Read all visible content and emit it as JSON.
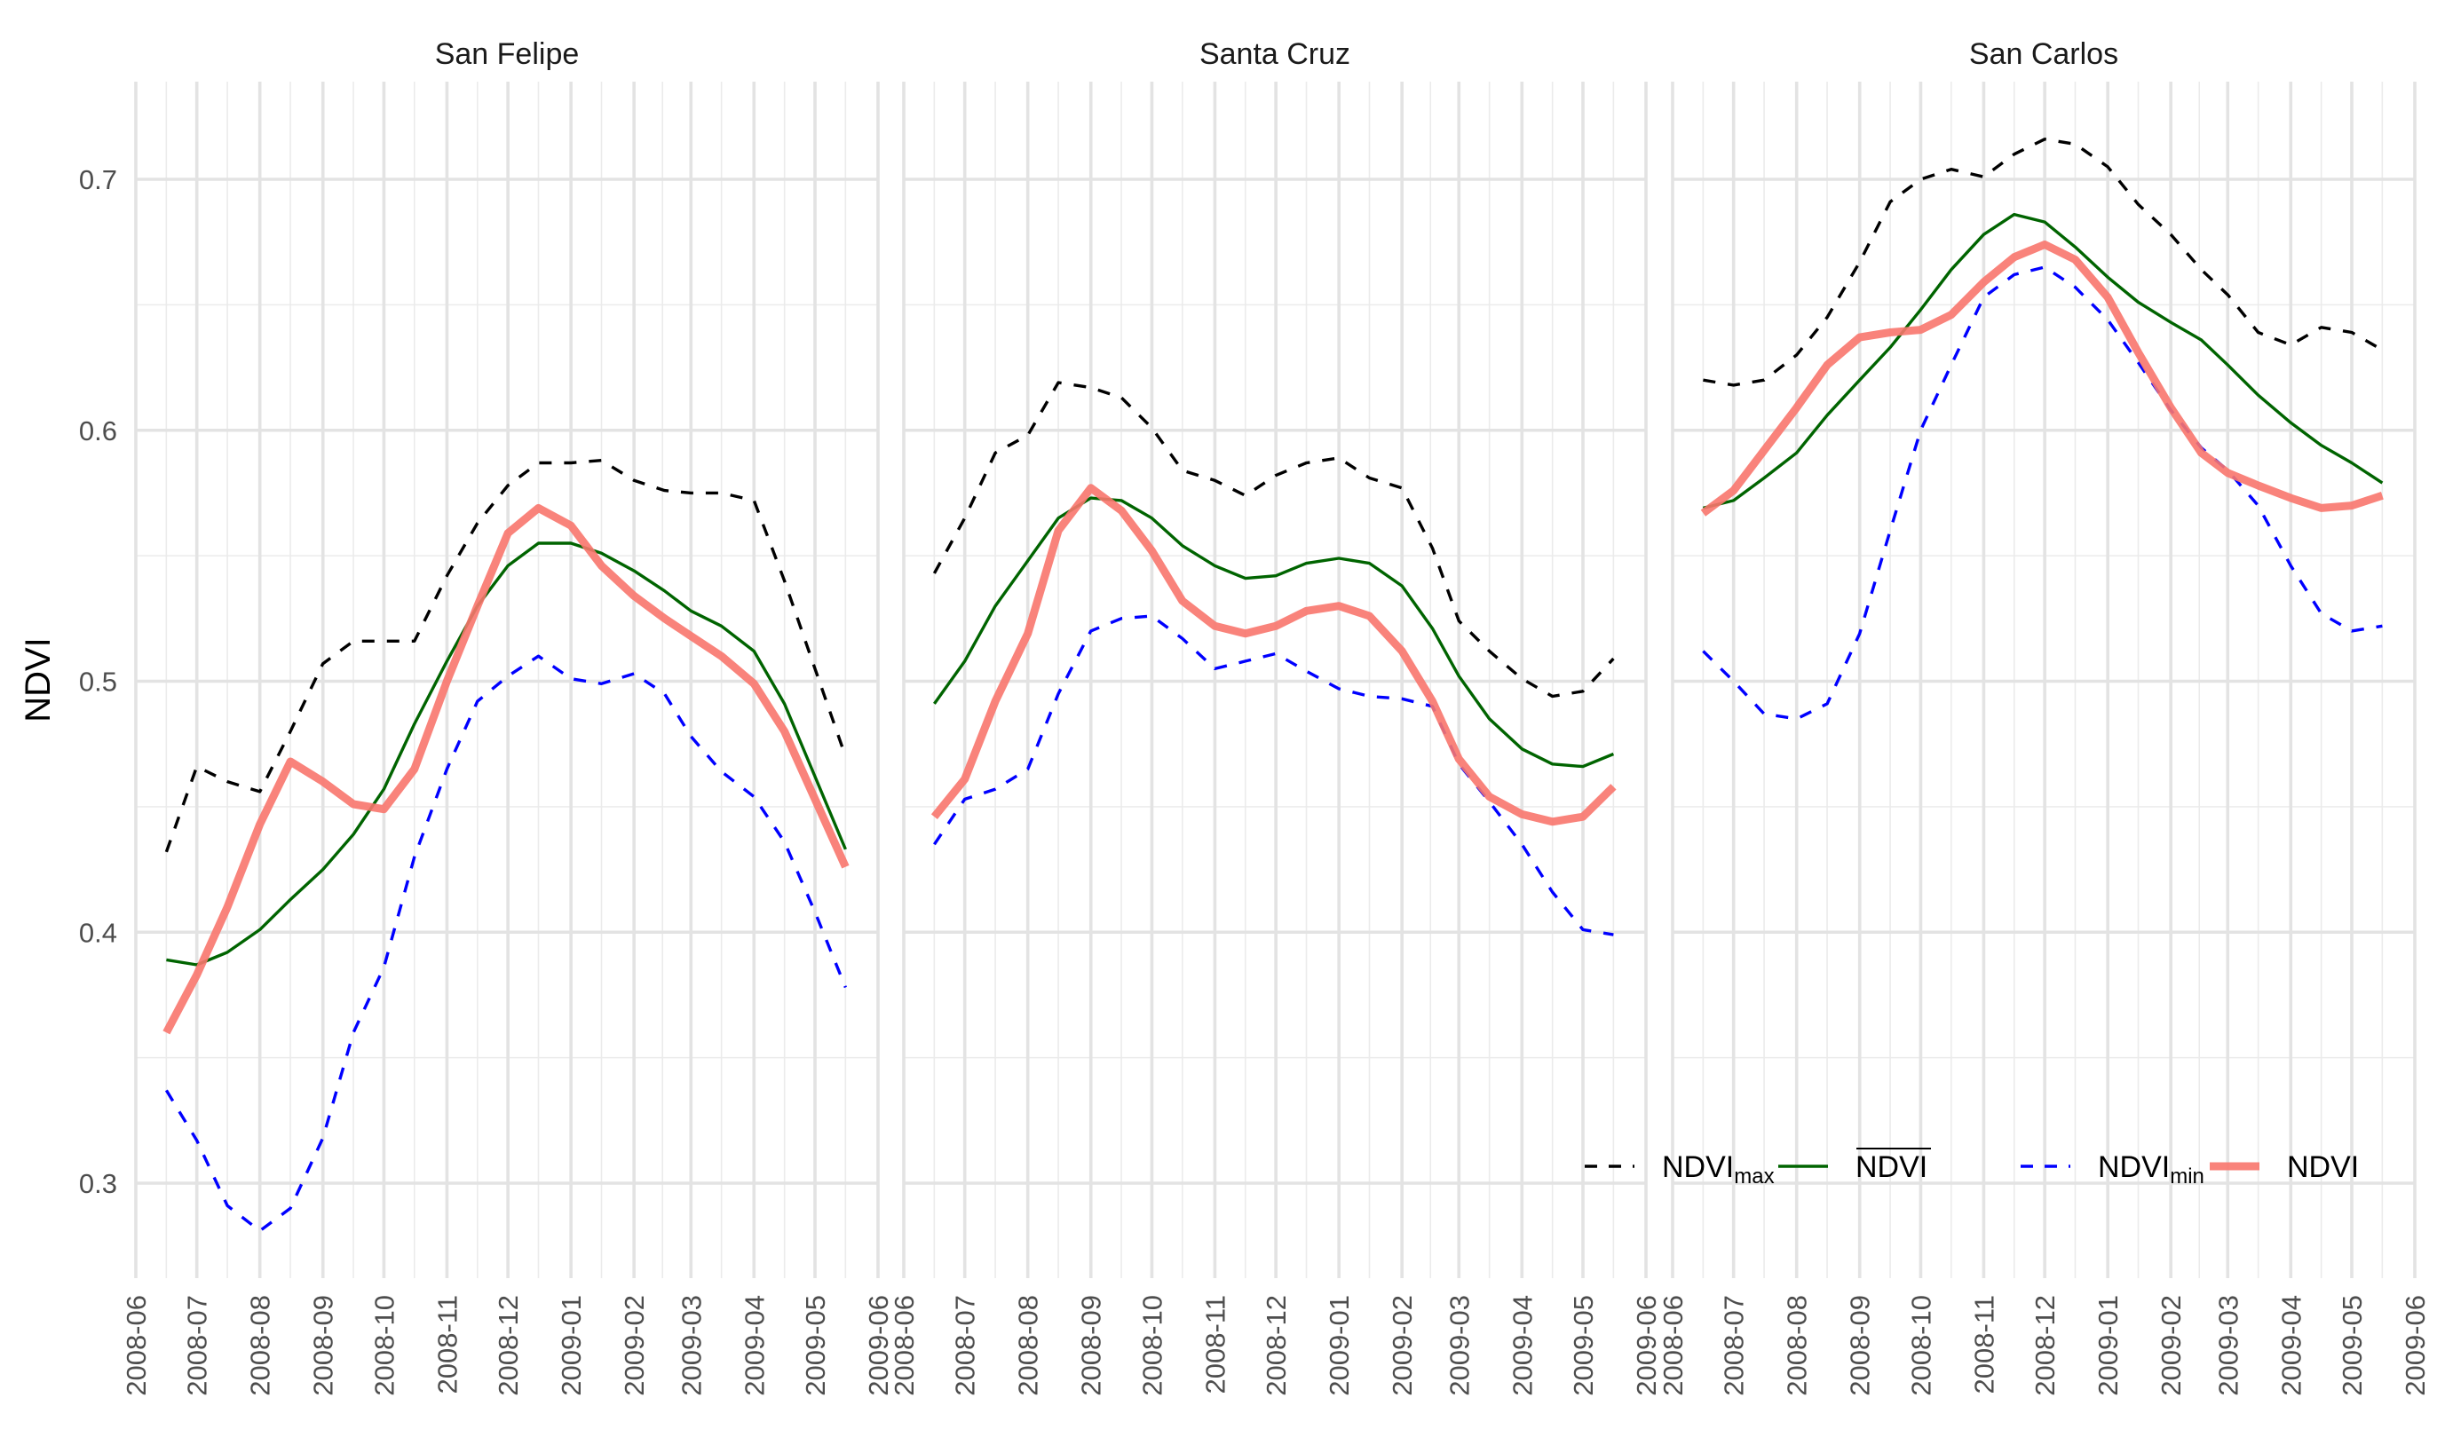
{
  "chart_data": {
    "type": "line",
    "ylabel": "NDVI",
    "ylim": [
      0.265,
      0.74
    ],
    "yticks": [
      0.3,
      0.4,
      0.5,
      0.6,
      0.7
    ],
    "ytick_labels": [
      "0.3",
      "0.4",
      "0.5",
      "0.6",
      "0.7"
    ],
    "xlim": [
      "2008-06-01",
      "2009-06-01"
    ],
    "xticks": [
      "2008-06",
      "2008-07",
      "2008-08",
      "2008-09",
      "2008-10",
      "2008-11",
      "2008-12",
      "2009-01",
      "2009-02",
      "2009-03",
      "2009-04",
      "2009-05",
      "2009-06"
    ],
    "grid": true,
    "legend_position": "bottom-right",
    "legend": [
      {
        "key": "max",
        "base": "NDVI",
        "sub": "max",
        "overline": false,
        "color": "#000000",
        "dash": true,
        "thick": false
      },
      {
        "key": "mean",
        "base": "NDVI",
        "sub": "",
        "overline": true,
        "color": "#006400",
        "dash": false,
        "thick": false
      },
      {
        "key": "min",
        "base": "NDVI",
        "sub": "min",
        "overline": false,
        "color": "#0000ff",
        "dash": true,
        "thick": false
      },
      {
        "key": "ndvi",
        "base": "NDVI",
        "sub": "",
        "overline": false,
        "color": "#f8766d",
        "dash": false,
        "thick": true
      }
    ],
    "x": [
      "2008-06-16",
      "2008-07-01",
      "2008-07-16",
      "2008-08-01",
      "2008-08-16",
      "2008-09-01",
      "2008-09-16",
      "2008-10-01",
      "2008-10-16",
      "2008-11-01",
      "2008-11-16",
      "2008-12-01",
      "2008-12-16",
      "2009-01-01",
      "2009-01-16",
      "2009-02-01",
      "2009-02-16",
      "2009-03-01",
      "2009-03-16",
      "2009-04-01",
      "2009-04-16",
      "2009-05-01",
      "2009-05-16"
    ],
    "panels": [
      {
        "title": "San Felipe",
        "series": [
          {
            "key": "max",
            "values": [
              0.432,
              0.466,
              0.46,
              0.456,
              0.48,
              0.507,
              0.516,
              0.516,
              0.516,
              0.542,
              0.563,
              0.578,
              0.587,
              0.587,
              0.588,
              0.58,
              0.576,
              0.575,
              0.575,
              0.572,
              0.54,
              0.505,
              0.47
            ]
          },
          {
            "key": "mean",
            "values": [
              0.389,
              0.387,
              0.392,
              0.401,
              0.413,
              0.425,
              0.439,
              0.457,
              0.483,
              0.508,
              0.53,
              0.546,
              0.555,
              0.555,
              0.551,
              0.544,
              0.536,
              0.528,
              0.522,
              0.512,
              0.491,
              0.462,
              0.433
            ]
          },
          {
            "key": "min",
            "values": [
              0.337,
              0.317,
              0.291,
              0.281,
              0.29,
              0.318,
              0.36,
              0.386,
              0.43,
              0.465,
              0.492,
              0.502,
              0.51,
              0.501,
              0.499,
              0.503,
              0.495,
              0.478,
              0.464,
              0.454,
              0.436,
              0.408,
              0.378
            ]
          },
          {
            "key": "ndvi",
            "values": [
              0.36,
              0.383,
              0.41,
              0.443,
              0.468,
              0.46,
              0.451,
              0.449,
              0.465,
              0.5,
              0.53,
              0.559,
              0.569,
              0.562,
              0.546,
              0.534,
              0.525,
              0.518,
              0.51,
              0.499,
              0.48,
              0.453,
              0.426
            ]
          }
        ]
      },
      {
        "title": "Santa Cruz",
        "series": [
          {
            "key": "max",
            "values": [
              0.543,
              0.565,
              0.591,
              0.598,
              0.619,
              0.617,
              0.613,
              0.601,
              0.584,
              0.58,
              0.574,
              0.582,
              0.587,
              0.589,
              0.581,
              0.577,
              0.553,
              0.524,
              0.512,
              0.501,
              0.494,
              0.496,
              0.509
            ]
          },
          {
            "key": "mean",
            "values": [
              0.491,
              0.508,
              0.53,
              0.548,
              0.565,
              0.573,
              0.572,
              0.565,
              0.554,
              0.546,
              0.541,
              0.542,
              0.547,
              0.549,
              0.547,
              0.538,
              0.521,
              0.502,
              0.485,
              0.473,
              0.467,
              0.466,
              0.471
            ]
          },
          {
            "key": "min",
            "values": [
              0.435,
              0.453,
              0.457,
              0.465,
              0.495,
              0.52,
              0.525,
              0.526,
              0.517,
              0.505,
              0.508,
              0.511,
              0.504,
              0.497,
              0.494,
              0.493,
              0.49,
              0.467,
              0.452,
              0.435,
              0.416,
              0.401,
              0.399
            ]
          },
          {
            "key": "ndvi",
            "values": [
              0.446,
              0.461,
              0.492,
              0.519,
              0.56,
              0.577,
              0.568,
              0.552,
              0.532,
              0.522,
              0.519,
              0.522,
              0.528,
              0.53,
              0.526,
              0.512,
              0.492,
              0.469,
              0.454,
              0.447,
              0.444,
              0.446,
              0.458
            ]
          }
        ]
      },
      {
        "title": "San Carlos",
        "series": [
          {
            "key": "max",
            "values": [
              0.62,
              0.618,
              0.62,
              0.63,
              0.645,
              0.667,
              0.691,
              0.7,
              0.704,
              0.701,
              0.71,
              0.716,
              0.714,
              0.705,
              0.69,
              0.678,
              0.664,
              0.654,
              0.639,
              0.634,
              0.641,
              0.639,
              0.632
            ]
          },
          {
            "key": "mean",
            "values": [
              0.569,
              0.572,
              0.581,
              0.591,
              0.606,
              0.62,
              0.633,
              0.648,
              0.664,
              0.678,
              0.686,
              0.683,
              0.673,
              0.661,
              0.651,
              0.643,
              0.636,
              0.626,
              0.614,
              0.603,
              0.594,
              0.587,
              0.579
            ]
          },
          {
            "key": "min",
            "values": [
              0.512,
              0.5,
              0.487,
              0.485,
              0.491,
              0.519,
              0.56,
              0.6,
              0.626,
              0.653,
              0.662,
              0.665,
              0.657,
              0.644,
              0.627,
              0.608,
              0.593,
              0.584,
              0.57,
              0.546,
              0.527,
              0.52,
              0.522
            ]
          },
          {
            "key": "ndvi",
            "values": [
              0.567,
              0.576,
              0.592,
              0.609,
              0.626,
              0.637,
              0.639,
              0.64,
              0.646,
              0.659,
              0.669,
              0.674,
              0.668,
              0.653,
              0.631,
              0.609,
              0.591,
              0.583,
              0.578,
              0.573,
              0.569,
              0.57,
              0.574
            ]
          }
        ]
      }
    ]
  }
}
